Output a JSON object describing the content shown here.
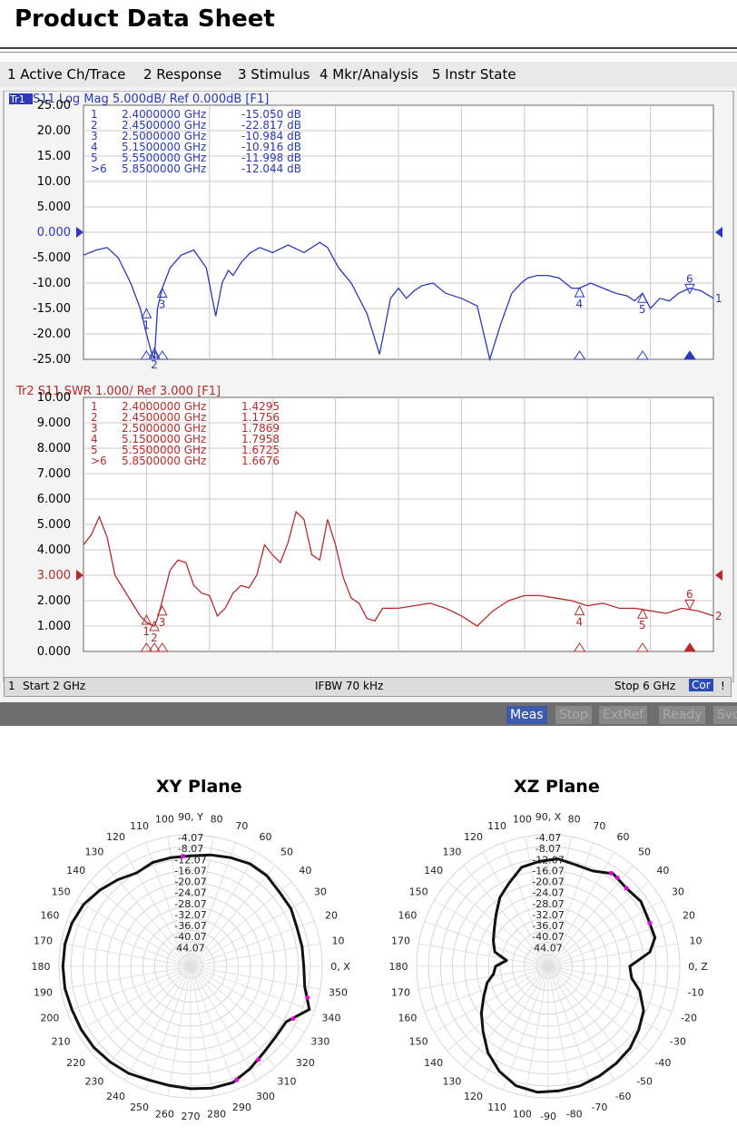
{
  "title": "Product Data Sheet",
  "menu": [
    "1 Active Ch/Trace",
    "2 Response",
    "3 Stimulus",
    "4 Mkr/Analysis",
    "5 Instr State"
  ],
  "status": {
    "ch": "1",
    "start": "Start 2 GHz",
    "ifbw": "IFBW 70 kHz",
    "stop": "Stop 6 GHz",
    "cor": "Cor",
    "bang": "!"
  },
  "bottom": {
    "meas": "Meas",
    "stop": "Stop",
    "extref": "ExtRef",
    "ready": "Ready",
    "svc": "Svc"
  },
  "colors": {
    "trace1": "#2a3ab8",
    "trace2": "#b82a2a",
    "grid": "#c8c8c8",
    "polar": "#111111",
    "marker": "#e000e0"
  },
  "chart_data": [
    {
      "type": "line",
      "title": "Tr1 S11 Log Mag 5.000dB/ Ref 0.000dB [F1]",
      "trace_tag": "Tr1",
      "header_rest": " S11 Log Mag 5.000dB/ Ref 0.000dB [F1]",
      "ylim": [
        -25,
        25
      ],
      "xlim": [
        2,
        6
      ],
      "yticks": [
        "25.00",
        "20.00",
        "15.00",
        "10.00",
        "5.000",
        "0.000",
        "-5.000",
        "-10.00",
        "-15.00",
        "-20.00",
        "-25.00"
      ],
      "ref_label": "0.000",
      "markers": [
        {
          "n": "1",
          "freq": "2.4000000 GHz",
          "val": "-15.050 dB"
        },
        {
          "n": "2",
          "freq": "2.4500000 GHz",
          "val": "-22.817 dB"
        },
        {
          "n": "3",
          "freq": "2.5000000 GHz",
          "val": "-10.984 dB"
        },
        {
          "n": "4",
          "freq": "5.1500000 GHz",
          "val": "-10.916 dB"
        },
        {
          "n": "5",
          "freq": "5.5500000 GHz",
          "val": "-11.998 dB"
        },
        {
          "n": ">6",
          "freq": "5.8500000 GHz",
          "val": "-12.044 dB"
        }
      ],
      "marker_points": [
        [
          2.4,
          -15.05,
          "1"
        ],
        [
          2.45,
          -22.82,
          "2"
        ],
        [
          2.5,
          -10.98,
          "3"
        ],
        [
          5.15,
          -10.92,
          "4"
        ],
        [
          5.55,
          -12.0,
          "5"
        ],
        [
          5.85,
          -12.04,
          "6"
        ]
      ],
      "end_label": "1",
      "x": [
        2.0,
        2.08,
        2.15,
        2.22,
        2.3,
        2.36,
        2.4,
        2.43,
        2.45,
        2.47,
        2.5,
        2.55,
        2.62,
        2.7,
        2.78,
        2.84,
        2.88,
        2.92,
        2.95,
        3.0,
        3.06,
        3.12,
        3.2,
        3.3,
        3.4,
        3.5,
        3.55,
        3.62,
        3.7,
        3.8,
        3.88,
        3.95,
        4.0,
        4.05,
        4.1,
        4.15,
        4.22,
        4.3,
        4.4,
        4.5,
        4.58,
        4.65,
        4.72,
        4.78,
        4.82,
        4.88,
        4.95,
        5.02,
        5.1,
        5.15,
        5.22,
        5.3,
        5.38,
        5.45,
        5.5,
        5.55,
        5.6,
        5.66,
        5.72,
        5.78,
        5.85,
        5.92,
        6.0
      ],
      "y": [
        -4.5,
        -3.5,
        -3.0,
        -5.0,
        -10.0,
        -15.0,
        -20.0,
        -23.5,
        -25.0,
        -15.0,
        -11.0,
        -7.0,
        -4.5,
        -3.5,
        -7.0,
        -16.5,
        -10.0,
        -7.5,
        -8.5,
        -6.0,
        -4.0,
        -3.0,
        -4.0,
        -2.5,
        -4.0,
        -2.0,
        -3.0,
        -7.0,
        -10.0,
        -16.0,
        -24.0,
        -13.0,
        -11.0,
        -13.0,
        -11.5,
        -10.5,
        -10.0,
        -12.0,
        -13.0,
        -14.5,
        -25.0,
        -18.0,
        -12.0,
        -10.0,
        -9.0,
        -8.5,
        -8.5,
        -9.0,
        -11.0,
        -11.0,
        -10.0,
        -11.0,
        -12.0,
        -12.5,
        -13.5,
        -12.0,
        -15.0,
        -13.0,
        -13.5,
        -12.0,
        -11.0,
        -11.5,
        -13.0
      ]
    },
    {
      "type": "line",
      "title": "Tr2 S11 SWR 1.000/ Ref 3.000 [F1]",
      "ylim": [
        0,
        10
      ],
      "xlim": [
        2,
        6
      ],
      "yticks": [
        "10.00",
        "9.000",
        "8.000",
        "7.000",
        "6.000",
        "5.000",
        "4.000",
        "3.000",
        "2.000",
        "1.000",
        "0.000"
      ],
      "ref_label": "3.000",
      "markers": [
        {
          "n": "1",
          "freq": "2.4000000 GHz",
          "val": "1.4295"
        },
        {
          "n": "2",
          "freq": "2.4500000 GHz",
          "val": "1.1756"
        },
        {
          "n": "3",
          "freq": "2.5000000 GHz",
          "val": "1.7869"
        },
        {
          "n": "4",
          "freq": "5.1500000 GHz",
          "val": "1.7958"
        },
        {
          "n": "5",
          "freq": "5.5500000 GHz",
          "val": "1.6725"
        },
        {
          "n": ">6",
          "freq": "5.8500000 GHz",
          "val": "1.6676"
        }
      ],
      "marker_points": [
        [
          2.4,
          1.43,
          "1"
        ],
        [
          2.45,
          1.18,
          "2"
        ],
        [
          2.5,
          1.79,
          "3"
        ],
        [
          5.15,
          1.8,
          "4"
        ],
        [
          5.55,
          1.67,
          "5"
        ],
        [
          5.85,
          1.67,
          "6"
        ]
      ],
      "end_label": "2",
      "x": [
        2.0,
        2.05,
        2.1,
        2.15,
        2.2,
        2.25,
        2.3,
        2.36,
        2.4,
        2.43,
        2.45,
        2.47,
        2.5,
        2.55,
        2.6,
        2.65,
        2.7,
        2.75,
        2.8,
        2.85,
        2.9,
        2.95,
        3.0,
        3.05,
        3.1,
        3.15,
        3.2,
        3.25,
        3.3,
        3.35,
        3.4,
        3.45,
        3.5,
        3.55,
        3.6,
        3.65,
        3.7,
        3.75,
        3.8,
        3.85,
        3.9,
        3.95,
        4.0,
        4.1,
        4.2,
        4.3,
        4.4,
        4.5,
        4.6,
        4.7,
        4.8,
        4.9,
        5.0,
        5.1,
        5.2,
        5.3,
        5.4,
        5.5,
        5.6,
        5.7,
        5.8,
        5.9,
        6.0
      ],
      "y": [
        4.2,
        4.6,
        5.3,
        4.5,
        3.0,
        2.5,
        2.0,
        1.4,
        1.15,
        1.05,
        1.0,
        1.3,
        2.0,
        3.2,
        3.6,
        3.5,
        2.6,
        2.3,
        2.2,
        1.4,
        1.7,
        2.3,
        2.6,
        2.5,
        3.0,
        4.2,
        3.8,
        3.5,
        4.3,
        5.5,
        5.2,
        3.8,
        3.6,
        5.2,
        4.2,
        2.9,
        2.1,
        1.9,
        1.3,
        1.2,
        1.7,
        1.7,
        1.7,
        1.8,
        1.9,
        1.7,
        1.4,
        1.0,
        1.6,
        2.0,
        2.2,
        2.2,
        2.1,
        2.0,
        1.8,
        1.9,
        1.7,
        1.7,
        1.6,
        1.5,
        1.7,
        1.6,
        1.4
      ]
    },
    {
      "type": "polar",
      "title": "XY Plane",
      "rings": [
        "-4.07",
        "-8.07",
        "-12.07",
        "-16.07",
        "-20.07",
        "-24.07",
        "-28.07",
        "-32.07",
        "-36.07",
        "-40.07",
        "44.07"
      ],
      "angles": [
        "0, X",
        "10",
        "20",
        "30",
        "40",
        "50",
        "60",
        "70",
        "80",
        "90, Y",
        "100",
        "110",
        "120",
        "130",
        "140",
        "150",
        "160",
        "170",
        "180",
        "190",
        "200",
        "210",
        "220",
        "230",
        "240",
        "250",
        "260",
        "270",
        "280",
        "290",
        "300",
        "310",
        "320",
        "330",
        "340",
        "350"
      ],
      "theta": [
        0,
        10,
        20,
        30,
        40,
        50,
        60,
        70,
        80,
        90,
        100,
        110,
        120,
        130,
        140,
        150,
        160,
        170,
        180,
        190,
        200,
        210,
        220,
        230,
        240,
        250,
        260,
        270,
        280,
        290,
        300,
        310,
        320,
        330,
        340,
        350
      ],
      "r": [
        0.86,
        0.86,
        0.86,
        0.88,
        0.88,
        0.9,
        0.9,
        0.88,
        0.86,
        0.84,
        0.84,
        0.84,
        0.82,
        0.86,
        0.9,
        0.94,
        0.96,
        0.97,
        0.97,
        0.97,
        0.96,
        0.96,
        0.96,
        0.95,
        0.94,
        0.92,
        0.92,
        0.93,
        0.94,
        0.94,
        0.9,
        0.86,
        0.84,
        0.84,
        0.96,
        0.88
      ],
      "marks": [
        94,
        292,
        306,
        333,
        345
      ]
    },
    {
      "type": "polar",
      "title": "XZ Plane",
      "rings": [
        "-4.07",
        "-8.07",
        "-12.07",
        "-16.07",
        "-20.07",
        "-24.07",
        "-28.07",
        "-32.07",
        "-36.07",
        "-40.07",
        "44.07"
      ],
      "angles": [
        "0, Z",
        "10",
        "20",
        "30",
        "40",
        "50",
        "60",
        "70",
        "80",
        "90, X",
        "100",
        "110",
        "120",
        "130",
        "140",
        "150",
        "160",
        "170",
        "180",
        "170",
        "160",
        "150",
        "140",
        "130",
        "120",
        "110",
        "100",
        "-90",
        "-80",
        "-70",
        "-60",
        "-50",
        "-40",
        "-30",
        "-20",
        "-10"
      ],
      "theta": [
        0,
        8,
        15,
        25,
        35,
        45,
        55,
        65,
        75,
        85,
        95,
        105,
        115,
        125,
        135,
        145,
        155,
        165,
        172,
        180,
        188,
        195,
        205,
        215,
        225,
        235,
        245,
        255,
        265,
        275,
        285,
        295,
        305,
        315,
        325,
        335,
        345,
        352
      ],
      "r": [
        0.62,
        0.78,
        0.84,
        0.84,
        0.86,
        0.84,
        0.86,
        0.8,
        0.8,
        0.82,
        0.8,
        0.78,
        0.7,
        0.64,
        0.56,
        0.5,
        0.46,
        0.42,
        0.32,
        0.4,
        0.42,
        0.48,
        0.54,
        0.62,
        0.7,
        0.8,
        0.88,
        0.94,
        0.96,
        0.95,
        0.94,
        0.92,
        0.9,
        0.88,
        0.84,
        0.8,
        0.72,
        0.64
      ],
      "marks": [
        23,
        45,
        52,
        56
      ]
    }
  ]
}
